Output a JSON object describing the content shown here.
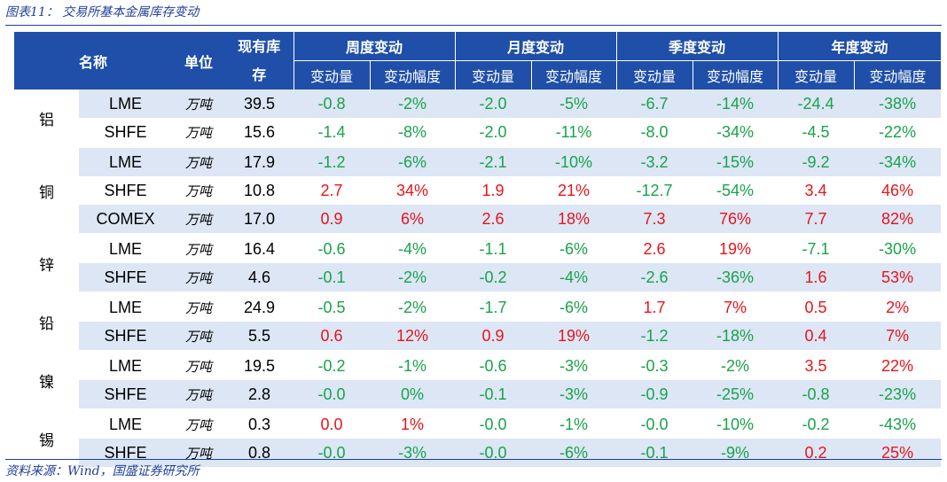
{
  "caption": "图表11：  交易所基本金属库存变动",
  "source": "资料来源：Wind，国盛证券研究所",
  "header": {
    "name": "名称",
    "unit": "单位",
    "inventory": "现有库存",
    "weekly": "周度变动",
    "monthly": "月度变动",
    "quarterly": "季度变动",
    "yearly": "年度变动",
    "change_amount": "变动量",
    "change_pct": "变动幅度"
  },
  "colors": {
    "header_bg": "#1f4fa8",
    "row_shade": "#dce6f5",
    "negative": "#18a34a",
    "positive": "#e8141b"
  },
  "groups": [
    {
      "metal": "铝",
      "rows": [
        {
          "exchange": "LME",
          "unit": "万吨",
          "inventory": "39.5",
          "w": "-0.8",
          "wp": "-2%",
          "m": "-2.0",
          "mp": "-5%",
          "q": "-6.7",
          "qp": "-14%",
          "y": "-24.4",
          "yp": "-38%"
        },
        {
          "exchange": "SHFE",
          "unit": "万吨",
          "inventory": "15.6",
          "w": "-1.4",
          "wp": "-8%",
          "m": "-2.0",
          "mp": "-11%",
          "q": "-8.0",
          "qp": "-34%",
          "y": "-4.5",
          "yp": "-22%"
        }
      ]
    },
    {
      "metal": "铜",
      "rows": [
        {
          "exchange": "LME",
          "unit": "万吨",
          "inventory": "17.9",
          "w": "-1.2",
          "wp": "-6%",
          "m": "-2.1",
          "mp": "-10%",
          "q": "-3.2",
          "qp": "-15%",
          "y": "-9.2",
          "yp": "-34%"
        },
        {
          "exchange": "SHFE",
          "unit": "万吨",
          "inventory": "10.8",
          "w": "2.7",
          "wp": "34%",
          "m": "1.9",
          "mp": "21%",
          "q": "-12.7",
          "qp": "-54%",
          "y": "3.4",
          "yp": "46%"
        },
        {
          "exchange": "COMEX",
          "unit": "万吨",
          "inventory": "17.0",
          "w": "0.9",
          "wp": "6%",
          "m": "2.6",
          "mp": "18%",
          "q": "7.3",
          "qp": "76%",
          "y": "7.7",
          "yp": "82%"
        }
      ]
    },
    {
      "metal": "锌",
      "rows": [
        {
          "exchange": "LME",
          "unit": "万吨",
          "inventory": "16.4",
          "w": "-0.6",
          "wp": "-4%",
          "m": "-1.1",
          "mp": "-6%",
          "q": "2.6",
          "qp": "19%",
          "y": "-7.1",
          "yp": "-30%"
        },
        {
          "exchange": "SHFE",
          "unit": "万吨",
          "inventory": "4.6",
          "w": "-0.1",
          "wp": "-2%",
          "m": "-0.2",
          "mp": "-4%",
          "q": "-2.6",
          "qp": "-36%",
          "y": "1.6",
          "yp": "53%"
        }
      ]
    },
    {
      "metal": "铅",
      "rows": [
        {
          "exchange": "LME",
          "unit": "万吨",
          "inventory": "24.9",
          "w": "-0.5",
          "wp": "-2%",
          "m": "-1.7",
          "mp": "-6%",
          "q": "1.7",
          "qp": "7%",
          "y": "0.5",
          "yp": "2%"
        },
        {
          "exchange": "SHFE",
          "unit": "万吨",
          "inventory": "5.5",
          "w": "0.6",
          "wp": "12%",
          "m": "0.9",
          "mp": "19%",
          "q": "-1.2",
          "qp": "-18%",
          "y": "0.4",
          "yp": "7%"
        }
      ]
    },
    {
      "metal": "镍",
      "rows": [
        {
          "exchange": "LME",
          "unit": "万吨",
          "inventory": "19.5",
          "w": "-0.2",
          "wp": "-1%",
          "m": "-0.6",
          "mp": "-3%",
          "q": "-0.3",
          "qp": "-2%",
          "y": "3.5",
          "yp": "22%"
        },
        {
          "exchange": "SHFE",
          "unit": "万吨",
          "inventory": "2.8",
          "w": "-0.0",
          "wp": "0%",
          "m": "-0.1",
          "mp": "-3%",
          "q": "-0.9",
          "qp": "-25%",
          "y": "-0.8",
          "yp": "-23%"
        }
      ]
    },
    {
      "metal": "锡",
      "rows": [
        {
          "exchange": "LME",
          "unit": "万吨",
          "inventory": "0.3",
          "w": "0.0",
          "wp": "1%",
          "m": "-0.0",
          "mp": "-1%",
          "q": "-0.0",
          "qp": "-10%",
          "y": "-0.2",
          "yp": "-43%"
        },
        {
          "exchange": "SHFE",
          "unit": "万吨",
          "inventory": "0.8",
          "w": "-0.0",
          "wp": "-3%",
          "m": "-0.0",
          "mp": "-6%",
          "q": "-0.1",
          "qp": "-9%",
          "y": "0.2",
          "yp": "25%"
        }
      ]
    }
  ]
}
